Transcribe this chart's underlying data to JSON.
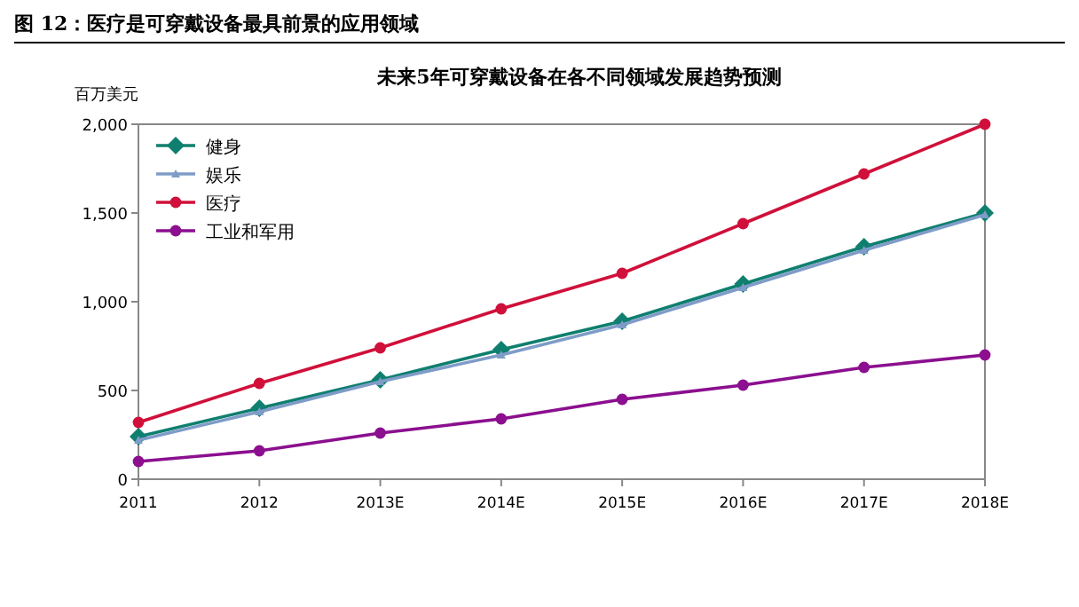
{
  "chart_data": {
    "type": "line",
    "title": "未来5年可穿戴设备在各不同领域发展趋势预测",
    "subtitle": "图 12：医疗是可穿戴设备最具前景的应用领域",
    "ylabel": "百万美元",
    "categories": [
      "2011",
      "2012",
      "2013E",
      "2014E",
      "2015E",
      "2016E",
      "2017E",
      "2018E"
    ],
    "series": [
      {
        "name": "健身",
        "color": "#0f7f6f",
        "marker": "diamond",
        "values": [
          240,
          400,
          560,
          730,
          890,
          1100,
          1310,
          1500
        ]
      },
      {
        "name": "娱乐",
        "color": "#7f9cc8",
        "marker": "triangle",
        "values": [
          220,
          380,
          550,
          700,
          870,
          1080,
          1290,
          1490
        ]
      },
      {
        "name": "医疗",
        "color": "#d0103a",
        "marker": "circle",
        "values": [
          320,
          540,
          740,
          960,
          1160,
          1440,
          1720,
          2000
        ]
      },
      {
        "name": "工业和军用",
        "color": "#8b0f8f",
        "marker": "circle",
        "values": [
          100,
          160,
          260,
          340,
          450,
          530,
          630,
          700
        ]
      }
    ],
    "ylim": [
      0,
      2000
    ],
    "yticks": [
      0,
      500,
      {
        "value": 1000,
        "label": "1,000"
      },
      {
        "value": 1500,
        "label": "1,500"
      },
      {
        "value": 2000,
        "label": "2,000"
      }
    ],
    "legend": "top left",
    "grid": false,
    "line_style": "solid"
  }
}
